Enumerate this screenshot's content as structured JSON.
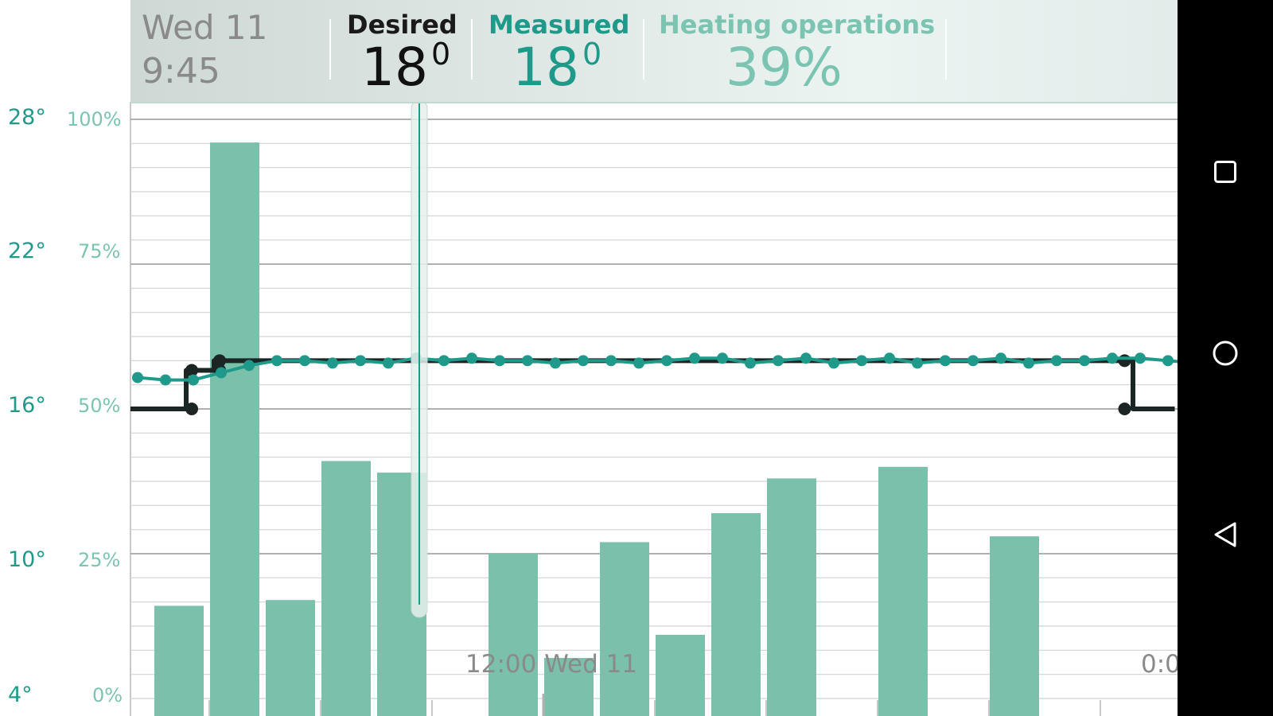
{
  "header": {
    "date": "Wed 11",
    "time": "9:45",
    "desired": {
      "label": "Desired",
      "value": "18",
      "degree": "0"
    },
    "measured": {
      "label": "Measured",
      "value": "18",
      "degree": "0"
    },
    "heating": {
      "label": "Heating operations",
      "value": "39%"
    }
  },
  "axes": {
    "temperature_ticks": [
      "28°",
      "22°",
      "16°",
      "10°",
      "4°"
    ],
    "percent_ticks": [
      "100%",
      "75%",
      "50%",
      "25%",
      "0%"
    ]
  },
  "time_labels": [
    "12:00 Wed 11",
    "0:0"
  ],
  "colors": {
    "accent": "#1f9a8a",
    "bar": "#7bc0aa",
    "desired_line": "#1a2524",
    "grid": "#cccccc",
    "navbar": "#000000"
  },
  "chart_data": {
    "type": "bar",
    "y_left_label": "temperature",
    "y_right_label": "heating",
    "ylim_temperature": [
      4,
      28
    ],
    "ylim_percent": [
      0,
      100
    ],
    "bars_heating_percent": [
      16,
      96,
      17,
      41,
      39,
      0,
      25,
      7,
      27,
      11,
      32,
      38,
      0,
      40,
      0,
      28
    ],
    "desired_temperature_steps": [
      {
        "from": 0.0,
        "to": 2.0,
        "value": 16
      },
      {
        "from": 2.0,
        "to": 3.0,
        "value": 17.6
      },
      {
        "from": 3.0,
        "to": 36.0,
        "value": 18
      },
      {
        "from": 36.0,
        "to": 37.5,
        "value": 16
      }
    ],
    "measured_temperature": [
      17.3,
      17.2,
      17.2,
      17.5,
      17.8,
      18.0,
      18.0,
      17.9,
      18.0,
      17.9,
      18.1,
      18.0,
      18.1,
      18.0,
      18.0,
      17.9,
      18.0,
      18.0,
      17.9,
      18.0,
      18.1,
      18.1,
      17.9,
      18.0,
      18.1,
      17.9,
      18.0,
      18.1,
      17.9,
      18.0,
      18.0,
      18.1,
      17.9,
      18.0,
      18.0,
      18.1,
      18.1,
      18.0,
      17.9
    ]
  },
  "navbar": {
    "recents_icon": "square-icon",
    "home_icon": "circle-icon",
    "back_icon": "triangle-back-icon"
  }
}
